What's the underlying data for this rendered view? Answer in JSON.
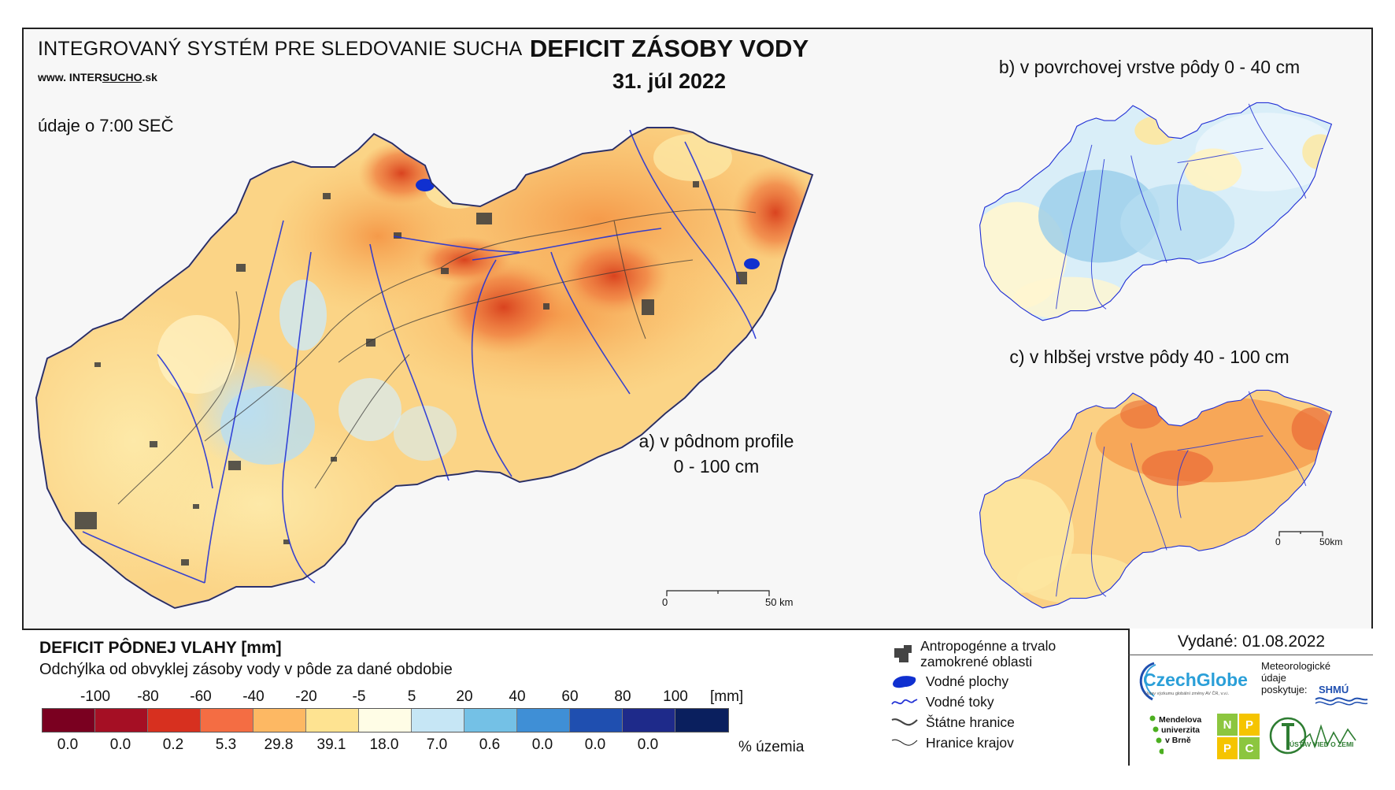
{
  "header": {
    "system_title": "INTEGROVANÝ SYSTÉM PRE SLEDOVANIE SUCHA",
    "url_prefix": "www. INTER",
    "url_underlined": "SUCHO",
    "url_suffix": ".sk",
    "time_note": "údaje o 7:00 SEČ",
    "main_title": "DEFICIT ZÁSOBY VODY",
    "date": "31. júl 2022"
  },
  "panels": {
    "a_line1": "a) v pôdnom profile",
    "a_line2": "0 - 100 cm",
    "b": "b) v povrchovej vrstve pôdy 0 - 40 cm",
    "c": "c) v hlbšej vrstve pôdy 40 - 100 cm"
  },
  "scalebars": {
    "main_zero": "0",
    "main_end": "50 km",
    "small_zero": "0",
    "small_end": "50km"
  },
  "legend": {
    "title": "DEFICIT PÔDNEJ VLAHY [mm]",
    "subtitle": "Odchýlka od obvyklej zásoby vody v pôde za dané obdobie",
    "ticks": [
      "-100",
      "-80",
      "-60",
      "-40",
      "-20",
      "-5",
      "5",
      "20",
      "40",
      "60",
      "80",
      "100"
    ],
    "unit": "[mm]",
    "colors": [
      "#7a0020",
      "#a50f24",
      "#d7301f",
      "#f46d43",
      "#fdb863",
      "#fee391",
      "#fffde6",
      "#c6e6f5",
      "#74c1e6",
      "#3f8fd6",
      "#1f4fb0",
      "#1e2a8a",
      "#0a1f5e"
    ],
    "percentages": [
      "0.0",
      "0.0",
      "0.2",
      "5.3",
      "29.8",
      "39.1",
      "18.0",
      "7.0",
      "0.6",
      "0.0",
      "0.0",
      "0.0"
    ],
    "percent_unit": "% územia"
  },
  "symbols": [
    {
      "icon": "urban-area-icon",
      "label": "Antropogénne a trvalo zamokrené oblasti"
    },
    {
      "icon": "water-body-icon",
      "label": "Vodné plochy"
    },
    {
      "icon": "river-icon",
      "label": "Vodné toky"
    },
    {
      "icon": "state-border-icon",
      "label": "Štátne hranice"
    },
    {
      "icon": "region-border-icon",
      "label": "Hranice krajov"
    }
  ],
  "footer": {
    "issued": "Vydané: 01.08.2022",
    "czechglobe": "CzechGlobe",
    "czechglobe_sub": "Ústav výzkumu globální změny AV ČR, v.v.i.",
    "meteo_line1": "Meteorologické",
    "meteo_line2": "údaje",
    "meteo_line3": "poskytuje:",
    "shmu": "SHMÚ",
    "mendel_line1": "Mendelova",
    "mendel_line2": "univerzita",
    "mendel_line3": "v Brně",
    "nppc_letters": [
      "N",
      "P",
      "P",
      "C"
    ],
    "ustav": "ÚSTAV VIED O ZEMI"
  }
}
